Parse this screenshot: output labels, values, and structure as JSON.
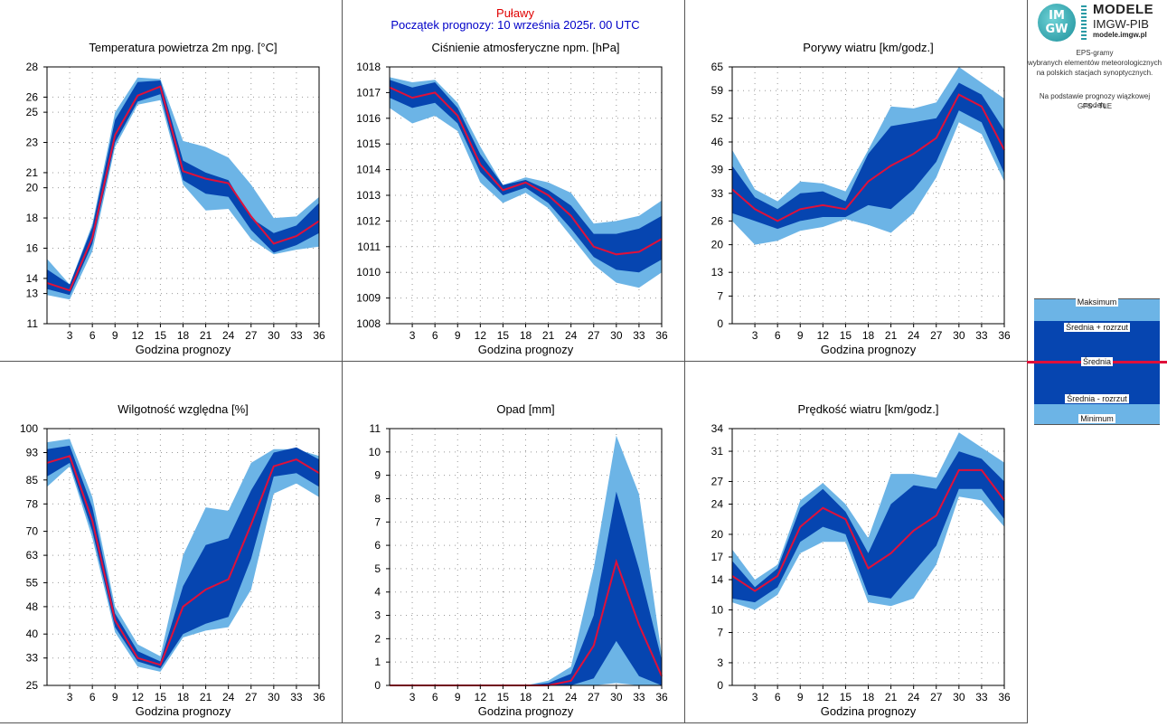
{
  "header": {
    "station": "Puławy",
    "forecast_start": "Początek prognozy: 10 września 2025r. 00 UTC"
  },
  "logo": {
    "mark_top": "IM",
    "mark_bottom": "GW",
    "title": "MODELE",
    "subtitle": "IMGW-PIB",
    "url": "modele.imgw.pl"
  },
  "description": {
    "lines": [
      "EPS-gramy",
      "wybranych elementów meteorologicznych",
      "na polskich stacjach  synoptycznych.",
      "",
      "Na podstawie prognozy wiązkowej modelu",
      "GFS - TLE"
    ]
  },
  "legend": {
    "max": "Maksimum",
    "mean_plus": "Średnia + rozrzut",
    "mean": "Średnia",
    "mean_minus": "Średnia - rozrzut",
    "min": "Minimum"
  },
  "colors": {
    "light_band": "#6cb4e6",
    "dark_band": "#0645b0",
    "mean_line": "#e0103a",
    "grid": "#999999"
  },
  "chart_data": [
    {
      "type": "area",
      "title": "Temperatura powietrza 2m npg. [°C]",
      "xlabel": "Godzina prognozy",
      "x": [
        0,
        3,
        6,
        9,
        12,
        15,
        18,
        21,
        24,
        27,
        30,
        33,
        36
      ],
      "xticks": [
        "3",
        "6",
        "9",
        "12",
        "15",
        "18",
        "21",
        "24",
        "27",
        "30",
        "33",
        "36"
      ],
      "ylim": [
        11,
        28
      ],
      "yticks": [
        "11",
        "13",
        "14",
        "16",
        "18",
        "20",
        "21",
        "23",
        "25",
        "26",
        "28"
      ],
      "grid": true,
      "series": [
        {
          "name": "Maksimum",
          "values": [
            15.3,
            13.6,
            17.6,
            25.0,
            27.3,
            27.2,
            23.1,
            22.7,
            22.0,
            20.2,
            18.0,
            18.1,
            19.4
          ]
        },
        {
          "name": "Średnia + rozrzut",
          "values": [
            14.6,
            13.6,
            17.4,
            24.5,
            27.0,
            27.1,
            21.8,
            21.0,
            20.5,
            18.0,
            17.0,
            17.5,
            19.0
          ]
        },
        {
          "name": "Średnia",
          "values": [
            13.7,
            13.2,
            16.7,
            23.5,
            26.1,
            26.7,
            21.1,
            20.6,
            20.3,
            18.1,
            16.3,
            16.8,
            17.8
          ]
        },
        {
          "name": "Średnia - rozrzut",
          "values": [
            13.3,
            12.9,
            16.3,
            23.0,
            25.7,
            26.2,
            20.5,
            19.6,
            19.4,
            17.2,
            15.7,
            16.2,
            17.0
          ]
        },
        {
          "name": "Minimum",
          "values": [
            12.9,
            12.6,
            15.8,
            22.7,
            25.5,
            25.8,
            20.2,
            18.5,
            18.6,
            16.6,
            15.6,
            15.9,
            16.1
          ]
        }
      ]
    },
    {
      "type": "area",
      "title": "Ciśnienie atmosferyczne npm. [hPa]",
      "xlabel": "Godzina prognozy",
      "x": [
        0,
        3,
        6,
        9,
        12,
        15,
        18,
        21,
        24,
        27,
        30,
        33,
        36
      ],
      "xticks": [
        "3",
        "6",
        "9",
        "12",
        "15",
        "18",
        "21",
        "24",
        "27",
        "30",
        "33",
        "36"
      ],
      "ylim": [
        1008,
        1018
      ],
      "yticks": [
        "1008",
        "1009",
        "1010",
        "1011",
        "1012",
        "1013",
        "1014",
        "1015",
        "1016",
        "1017",
        "1018"
      ],
      "grid": true,
      "series": [
        {
          "name": "Maksimum",
          "values": [
            1017.6,
            1017.4,
            1017.5,
            1016.6,
            1014.9,
            1013.4,
            1013.7,
            1013.5,
            1013.1,
            1011.9,
            1012.0,
            1012.2,
            1012.8
          ]
        },
        {
          "name": "Średnia + rozrzut",
          "values": [
            1017.5,
            1017.2,
            1017.4,
            1016.4,
            1014.6,
            1013.4,
            1013.6,
            1013.2,
            1012.6,
            1011.5,
            1011.5,
            1011.7,
            1012.2
          ]
        },
        {
          "name": "Średnia",
          "values": [
            1017.2,
            1016.8,
            1017.0,
            1016.1,
            1014.2,
            1013.2,
            1013.5,
            1013.0,
            1012.2,
            1011.0,
            1010.7,
            1010.8,
            1011.3
          ]
        },
        {
          "name": "Średnia - rozrzut",
          "values": [
            1016.8,
            1016.4,
            1016.6,
            1015.8,
            1013.9,
            1013.0,
            1013.3,
            1012.7,
            1011.7,
            1010.6,
            1010.1,
            1010.0,
            1010.5
          ]
        },
        {
          "name": "Minimum",
          "values": [
            1016.4,
            1015.8,
            1016.1,
            1015.5,
            1013.5,
            1012.7,
            1013.1,
            1012.5,
            1011.4,
            1010.3,
            1009.6,
            1009.4,
            1010.0
          ]
        }
      ]
    },
    {
      "type": "area",
      "title": "Porywy wiatru [km/godz.]",
      "xlabel": "Godzina prognozy",
      "x": [
        0,
        3,
        6,
        9,
        12,
        15,
        18,
        21,
        24,
        27,
        30,
        33,
        36
      ],
      "xticks": [
        "3",
        "6",
        "9",
        "12",
        "15",
        "18",
        "21",
        "24",
        "27",
        "30",
        "33",
        "36"
      ],
      "ylim": [
        0,
        65
      ],
      "yticks": [
        "0",
        "7",
        "13",
        "20",
        "26",
        "33",
        "39",
        "46",
        "52",
        "59",
        "65"
      ],
      "grid": true,
      "series": [
        {
          "name": "Maksimum",
          "values": [
            44,
            34,
            31,
            36,
            35.5,
            33.5,
            44,
            55,
            54.5,
            56,
            65,
            61,
            57
          ]
        },
        {
          "name": "Średnia + rozrzut",
          "values": [
            40,
            32,
            29,
            33,
            33.5,
            31,
            43,
            50,
            51,
            52,
            61,
            58,
            49
          ]
        },
        {
          "name": "Średnia",
          "values": [
            34,
            29,
            26,
            29,
            30,
            29,
            36,
            40,
            43,
            47,
            58,
            55,
            44
          ]
        },
        {
          "name": "Średnia - rozrzut",
          "values": [
            28,
            26,
            24,
            26,
            27,
            27,
            30,
            29,
            34,
            41,
            54,
            51,
            38
          ]
        },
        {
          "name": "Minimum",
          "values": [
            26,
            20,
            21,
            23.5,
            24.5,
            26.5,
            25,
            23,
            28,
            37,
            51,
            48,
            36
          ]
        }
      ]
    },
    {
      "type": "area",
      "title": "Wilgotność względna [%]",
      "xlabel": "Godzina prognozy",
      "x": [
        0,
        3,
        6,
        9,
        12,
        15,
        18,
        21,
        24,
        27,
        30,
        33,
        36
      ],
      "xticks": [
        "3",
        "6",
        "9",
        "12",
        "15",
        "18",
        "21",
        "24",
        "27",
        "30",
        "33",
        "36"
      ],
      "ylim": [
        25,
        100
      ],
      "yticks": [
        "25",
        "33",
        "40",
        "48",
        "55",
        "63",
        "70",
        "78",
        "85",
        "93",
        "100"
      ],
      "grid": true,
      "series": [
        {
          "name": "Maksimum",
          "values": [
            96,
            97,
            80,
            48,
            37,
            33.5,
            63,
            77,
            76,
            90,
            94,
            94,
            92
          ]
        },
        {
          "name": "Średnia + rozrzut",
          "values": [
            94,
            95,
            77,
            46,
            35,
            32,
            54,
            66,
            68,
            82,
            93,
            94.5,
            91
          ]
        },
        {
          "name": "Średnia",
          "values": [
            90,
            92,
            73,
            44,
            33,
            31,
            48,
            53,
            56,
            72,
            89,
            91,
            87
          ]
        },
        {
          "name": "Średnia - rozrzut",
          "values": [
            86,
            90,
            70,
            42,
            32,
            30,
            40,
            43,
            45,
            62,
            86,
            87,
            83
          ]
        },
        {
          "name": "Minimum",
          "values": [
            83,
            89,
            68,
            40.5,
            30.5,
            29,
            39,
            41,
            42,
            53,
            81,
            84,
            80
          ]
        }
      ]
    },
    {
      "type": "area",
      "title": "Opad [mm]",
      "xlabel": "Godzina prognozy",
      "x": [
        0,
        3,
        6,
        9,
        12,
        15,
        18,
        21,
        24,
        27,
        30,
        33,
        36
      ],
      "xticks": [
        "3",
        "6",
        "9",
        "12",
        "15",
        "18",
        "21",
        "24",
        "27",
        "30",
        "33",
        "36"
      ],
      "ylim": [
        0,
        11
      ],
      "yticks": [
        "0",
        "1",
        "2",
        "3",
        "4",
        "5",
        "6",
        "7",
        "8",
        "9",
        "10",
        "11"
      ],
      "grid": true,
      "series": [
        {
          "name": "Maksimum",
          "values": [
            0,
            0,
            0,
            0,
            0,
            0,
            0,
            0.2,
            0.8,
            5,
            10.7,
            8.2,
            1.3
          ]
        },
        {
          "name": "Średnia + rozrzut",
          "values": [
            0,
            0,
            0,
            0,
            0,
            0,
            0,
            0.1,
            0.5,
            3,
            8.3,
            5,
            1.1
          ]
        },
        {
          "name": "Średnia",
          "values": [
            0,
            0,
            0,
            0,
            0,
            0,
            0,
            0,
            0.2,
            1.7,
            5.3,
            2.6,
            0.4
          ]
        },
        {
          "name": "Średnia - rozrzut",
          "values": [
            0,
            0,
            0,
            0,
            0,
            0,
            0,
            0,
            0,
            0.3,
            1.9,
            0.4,
            0
          ]
        },
        {
          "name": "Minimum",
          "values": [
            0,
            0,
            0,
            0,
            0,
            0,
            0,
            0,
            0,
            0,
            0.1,
            0,
            0
          ]
        }
      ]
    },
    {
      "type": "area",
      "title": "Prędkość wiatru [km/godz.]",
      "xlabel": "Godzina prognozy",
      "x": [
        0,
        3,
        6,
        9,
        12,
        15,
        18,
        21,
        24,
        27,
        30,
        33,
        36
      ],
      "xticks": [
        "3",
        "6",
        "9",
        "12",
        "15",
        "18",
        "21",
        "24",
        "27",
        "30",
        "33",
        "36"
      ],
      "ylim": [
        0,
        34
      ],
      "yticks": [
        "0",
        "3",
        "7",
        "10",
        "14",
        "17",
        "20",
        "24",
        "27",
        "31",
        "34"
      ],
      "grid": true,
      "series": [
        {
          "name": "Maksimum",
          "values": [
            18,
            14,
            16,
            24.5,
            26.8,
            24,
            19.5,
            28,
            28,
            27.5,
            33.5,
            31.5,
            29.5
          ]
        },
        {
          "name": "Średnia + rozrzut",
          "values": [
            16.5,
            13,
            15.5,
            23.5,
            26,
            23,
            17.5,
            24,
            26.5,
            26,
            31,
            30,
            27
          ]
        },
        {
          "name": "Średnia",
          "values": [
            14.5,
            12.5,
            14.5,
            21,
            23.5,
            22,
            15.5,
            17.5,
            20.5,
            22.5,
            28.5,
            28.5,
            24.5
          ]
        },
        {
          "name": "Średnia - rozrzut",
          "values": [
            11.5,
            11,
            13,
            19,
            21,
            20,
            12,
            11.5,
            15,
            18.5,
            26,
            26,
            22
          ]
        },
        {
          "name": "Minimum",
          "values": [
            11,
            10,
            12,
            17.5,
            19,
            19,
            11,
            10.5,
            11.5,
            16,
            25,
            24.5,
            21
          ]
        }
      ]
    }
  ]
}
